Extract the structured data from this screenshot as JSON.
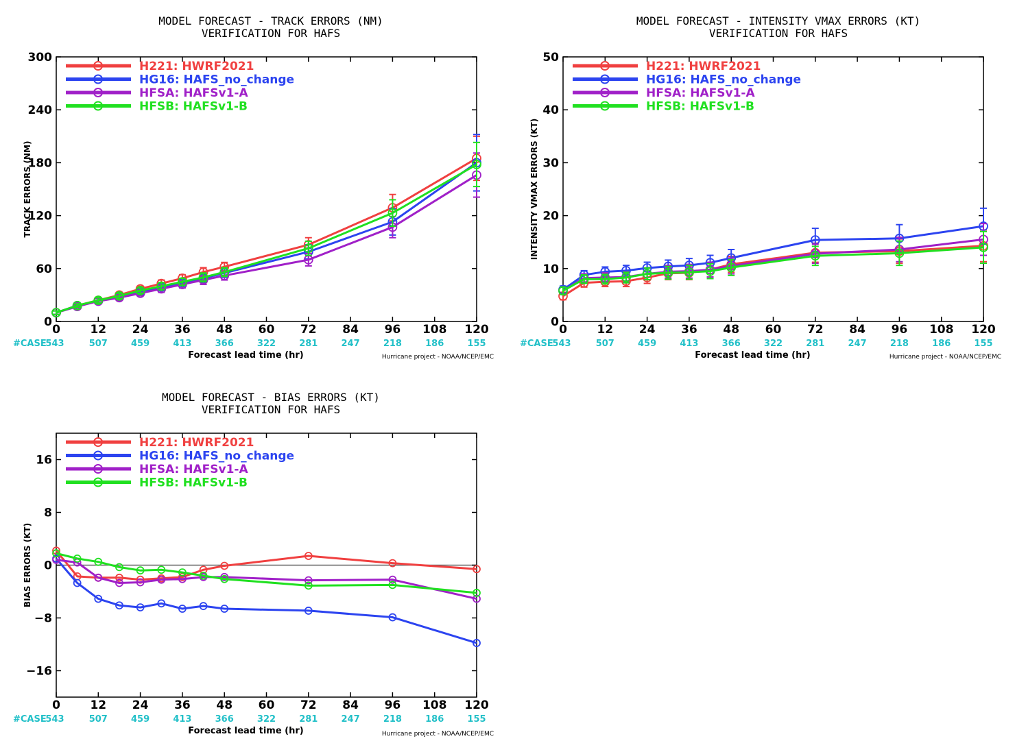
{
  "chart_data": [
    {
      "type": "line",
      "title": "MODEL FORECAST - TRACK ERRORS (NM)",
      "subtitle": "VERIFICATION FOR HAFS",
      "xlabel": "Forecast lead time (hr)",
      "ylabel": "TRACK ERRORS (NM)",
      "credit": "Hurricane project - NOAA/NCEP/EMC",
      "case_prefix": "#CASE",
      "xlim": [
        0,
        120
      ],
      "ylim": [
        0,
        300
      ],
      "xticks": [
        0,
        12,
        24,
        36,
        48,
        60,
        72,
        84,
        96,
        108,
        120
      ],
      "xtick_labels": [
        "0",
        "12",
        "24",
        "36",
        "48",
        "60",
        "72",
        "84",
        "96",
        "108",
        "120"
      ],
      "yticks": [
        0,
        60,
        120,
        180,
        240,
        300
      ],
      "ytick_labels": [
        "0",
        "60",
        "120",
        "180",
        "240",
        "300"
      ],
      "cases": [
        "543",
        "507",
        "459",
        "413",
        "366",
        "322",
        "281",
        "247",
        "218",
        "186",
        "155"
      ],
      "case_x": [
        0,
        12,
        24,
        36,
        48,
        60,
        72,
        84,
        96,
        108,
        120
      ],
      "legend": "top-left",
      "zero_line": false,
      "error_bars": true,
      "marker_size": 6,
      "series": [
        {
          "name": "H221: HWRF2021",
          "color": "#f04040",
          "x": [
            0,
            6,
            12,
            18,
            24,
            30,
            36,
            42,
            48,
            72,
            96,
            120
          ],
          "values": [
            10,
            18,
            24,
            30,
            37,
            43,
            49,
            56,
            62,
            87,
            129,
            185
          ],
          "err": [
            2,
            2,
            3,
            3,
            3,
            4,
            4,
            5,
            5,
            8,
            15,
            25
          ]
        },
        {
          "name": "HG16: HAFS_no_change",
          "color": "#2c44f0",
          "x": [
            0,
            6,
            12,
            18,
            24,
            30,
            36,
            42,
            48,
            72,
            96,
            120
          ],
          "values": [
            10,
            18,
            23,
            28,
            34,
            39,
            44,
            49,
            55,
            79,
            113,
            180
          ],
          "err": [
            2,
            2,
            3,
            3,
            3,
            4,
            4,
            5,
            5,
            8,
            15,
            32
          ]
        },
        {
          "name": "HFSA: HAFSv1-A",
          "color": "#a020c8",
          "x": [
            0,
            6,
            12,
            18,
            24,
            30,
            36,
            42,
            48,
            72,
            96,
            120
          ],
          "values": [
            10,
            17,
            23,
            27,
            32,
            37,
            42,
            47,
            52,
            70,
            107,
            166
          ],
          "err": [
            2,
            2,
            3,
            3,
            3,
            4,
            4,
            5,
            5,
            7,
            12,
            25
          ]
        },
        {
          "name": "HFSB: HAFSv1-B",
          "color": "#20e020",
          "x": [
            0,
            6,
            12,
            18,
            24,
            30,
            36,
            42,
            48,
            72,
            96,
            120
          ],
          "values": [
            10,
            18,
            24,
            29,
            35,
            40,
            45,
            50,
            56,
            83,
            123,
            178
          ],
          "err": [
            2,
            2,
            3,
            3,
            3,
            4,
            4,
            5,
            5,
            8,
            15,
            25
          ]
        }
      ]
    },
    {
      "type": "line",
      "title": "MODEL FORECAST - INTENSITY VMAX ERRORS (KT)",
      "subtitle": "VERIFICATION FOR HAFS",
      "xlabel": "Forecast lead time (hr)",
      "ylabel": "INTENSITY VMAX ERRORS (KT)",
      "credit": "Hurricane project - NOAA/NCEP/EMC",
      "case_prefix": "#CASE",
      "xlim": [
        0,
        120
      ],
      "ylim": [
        0,
        50
      ],
      "xticks": [
        0,
        12,
        24,
        36,
        48,
        60,
        72,
        84,
        96,
        108,
        120
      ],
      "xtick_labels": [
        "0",
        "12",
        "24",
        "36",
        "48",
        "60",
        "72",
        "84",
        "96",
        "108",
        "120"
      ],
      "yticks": [
        0,
        10,
        20,
        30,
        40,
        50
      ],
      "ytick_labels": [
        "0",
        "10",
        "20",
        "30",
        "40",
        "50"
      ],
      "cases": [
        "543",
        "507",
        "459",
        "413",
        "366",
        "322",
        "281",
        "247",
        "218",
        "186",
        "155"
      ],
      "case_x": [
        0,
        12,
        24,
        36,
        48,
        60,
        72,
        84,
        96,
        108,
        120
      ],
      "legend": "top-left",
      "zero_line": false,
      "error_bars": true,
      "marker_size": 6,
      "series": [
        {
          "name": "H221: HWRF2021",
          "color": "#f04040",
          "x": [
            0,
            6,
            12,
            18,
            24,
            30,
            36,
            42,
            48,
            72,
            96,
            120
          ],
          "values": [
            4.8,
            7.3,
            7.5,
            7.6,
            8.3,
            9.1,
            9.2,
            9.8,
            10.8,
            13.0,
            13.3,
            14.3
          ],
          "err": [
            0.7,
            0.8,
            0.9,
            1.0,
            1.1,
            1.2,
            1.3,
            1.4,
            1.5,
            1.8,
            2.3,
            3.0
          ]
        },
        {
          "name": "HG16: HAFS_no_change",
          "color": "#2c44f0",
          "x": [
            0,
            6,
            12,
            18,
            24,
            30,
            36,
            42,
            48,
            72,
            96,
            120
          ],
          "values": [
            6.0,
            8.8,
            9.4,
            9.6,
            10.1,
            10.4,
            10.6,
            11.1,
            12.0,
            15.4,
            15.7,
            18.0
          ],
          "err": [
            0.7,
            0.8,
            0.9,
            1.0,
            1.1,
            1.2,
            1.3,
            1.4,
            1.6,
            2.2,
            2.6,
            3.4
          ]
        },
        {
          "name": "HFSA: HAFSv1-A",
          "color": "#a020c8",
          "x": [
            0,
            6,
            12,
            18,
            24,
            30,
            36,
            42,
            48,
            72,
            96,
            120
          ],
          "values": [
            5.8,
            8.2,
            8.3,
            8.4,
            9.0,
            9.4,
            9.5,
            9.8,
            10.5,
            12.8,
            13.6,
            15.5
          ],
          "err": [
            0.7,
            0.8,
            0.9,
            1.0,
            1.1,
            1.2,
            1.3,
            1.4,
            1.5,
            1.8,
            2.3,
            3.0
          ]
        },
        {
          "name": "HFSB: HAFSv1-B",
          "color": "#20e020",
          "x": [
            0,
            6,
            12,
            18,
            24,
            30,
            36,
            42,
            48,
            72,
            96,
            120
          ],
          "values": [
            5.8,
            8.0,
            8.0,
            8.3,
            9.0,
            9.2,
            9.3,
            9.5,
            10.2,
            12.4,
            12.9,
            14.0
          ],
          "err": [
            0.7,
            0.8,
            0.9,
            1.0,
            1.1,
            1.2,
            1.3,
            1.4,
            1.5,
            1.8,
            2.3,
            3.0
          ]
        }
      ]
    },
    {
      "type": "line",
      "title": "MODEL FORECAST - BIAS ERRORS (KT)",
      "subtitle": "VERIFICATION FOR HAFS",
      "xlabel": "Forecast lead time (hr)",
      "ylabel": "BIAS ERRORS (KT)",
      "credit": "Hurricane project - NOAA/NCEP/EMC",
      "case_prefix": "#CASE",
      "xlim": [
        0,
        120
      ],
      "ylim": [
        -20,
        20
      ],
      "xticks": [
        0,
        12,
        24,
        36,
        48,
        60,
        72,
        84,
        96,
        108,
        120
      ],
      "xtick_labels": [
        "0",
        "12",
        "24",
        "36",
        "48",
        "60",
        "72",
        "84",
        "96",
        "108",
        "120"
      ],
      "yticks": [
        -16,
        -8,
        0,
        8,
        16
      ],
      "ytick_labels": [
        "−16",
        "−8",
        "0",
        "8",
        "16"
      ],
      "cases": [
        "543",
        "507",
        "459",
        "413",
        "366",
        "322",
        "281",
        "247",
        "218",
        "186",
        "155"
      ],
      "case_x": [
        0,
        12,
        24,
        36,
        48,
        60,
        72,
        84,
        96,
        108,
        120
      ],
      "legend": "top-left",
      "zero_line": true,
      "error_bars": false,
      "marker_size": 5,
      "series": [
        {
          "name": "H221: HWRF2021",
          "color": "#f04040",
          "x": [
            0,
            6,
            12,
            18,
            24,
            30,
            36,
            42,
            48,
            72,
            96,
            120
          ],
          "values": [
            2.2,
            -1.7,
            -1.9,
            -1.9,
            -2.2,
            -2.0,
            -1.8,
            -0.7,
            -0.1,
            1.4,
            0.3,
            -0.6
          ]
        },
        {
          "name": "HG16: HAFS_no_change",
          "color": "#2c44f0",
          "x": [
            0,
            6,
            12,
            18,
            24,
            30,
            36,
            42,
            48,
            72,
            96,
            120
          ],
          "values": [
            1.0,
            -2.7,
            -5.1,
            -6.1,
            -6.4,
            -5.8,
            -6.6,
            -6.2,
            -6.6,
            -6.9,
            -7.9,
            -11.8
          ]
        },
        {
          "name": "HFSA: HAFSv1-A",
          "color": "#a020c8",
          "x": [
            0,
            6,
            12,
            18,
            24,
            30,
            36,
            42,
            48,
            72,
            96,
            120
          ],
          "values": [
            0.8,
            0.4,
            -1.9,
            -2.7,
            -2.6,
            -2.2,
            -2.1,
            -1.8,
            -1.8,
            -2.3,
            -2.2,
            -5.1
          ]
        },
        {
          "name": "HFSB: HAFSv1-B",
          "color": "#20e020",
          "x": [
            0,
            6,
            12,
            18,
            24,
            30,
            36,
            42,
            48,
            72,
            96,
            120
          ],
          "values": [
            1.8,
            1.0,
            0.5,
            -0.3,
            -0.8,
            -0.7,
            -1.1,
            -1.6,
            -2.1,
            -3.1,
            -3.0,
            -4.2
          ]
        }
      ]
    }
  ]
}
